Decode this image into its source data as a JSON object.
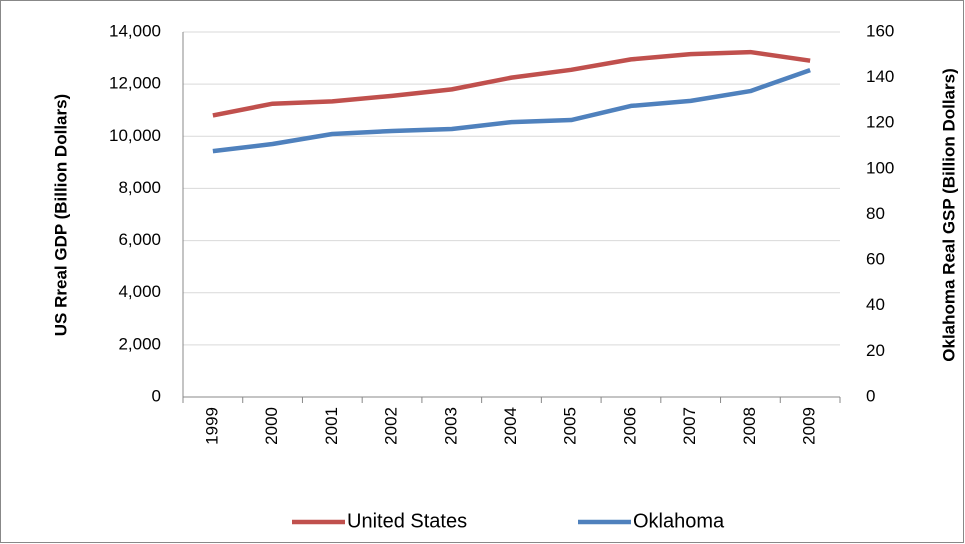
{
  "chart_data": {
    "type": "line",
    "y_label": "US Rreal GDP (Billion  Dollars)",
    "y2_label": "Oklahoma Real GSP (Billion Dollars)",
    "categories": [
      "1999",
      "2000",
      "2001",
      "2002",
      "2003",
      "2004",
      "2005",
      "2006",
      "2007",
      "2008",
      "2009"
    ],
    "series": [
      {
        "name": "United States",
        "color": "#c0504d",
        "values": [
          10800,
          11250,
          11340,
          11550,
          11800,
          12250,
          12550,
          12950,
          13150,
          13230,
          12900
        ]
      },
      {
        "name": "Oklahoma",
        "color": "#4f81bd",
        "axis": "y2",
        "values": [
          107.8,
          110.9,
          115.3,
          116.6,
          117.5,
          120.5,
          121.4,
          127.6,
          129.8,
          134.1,
          143.3
        ]
      }
    ],
    "ylim": [
      0,
      14000
    ],
    "yticks": [
      0,
      {
        "value": 2000,
        "label": "2,000"
      },
      {
        "value": 4000,
        "label": "4,000"
      },
      {
        "value": 6000,
        "label": "6,000"
      },
      {
        "value": 8000,
        "label": "8,000"
      },
      {
        "value": 10000,
        "label": "10,000"
      },
      {
        "value": 12000,
        "label": "12,000"
      },
      {
        "value": 14000,
        "label": "14,000"
      }
    ],
    "y2lim": [
      0,
      160
    ],
    "y2ticks": [
      0,
      20,
      40,
      60,
      80,
      100,
      120,
      140,
      160
    ],
    "grid": true,
    "legend": "bottom"
  }
}
